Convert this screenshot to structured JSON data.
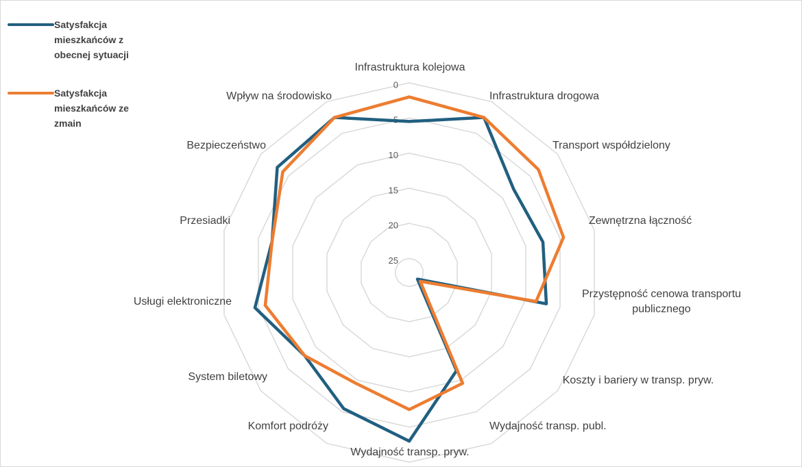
{
  "chart_data": {
    "type": "radar",
    "categories": [
      "Infrastruktura kolejowa",
      "Infrastruktura drogowa",
      "Transport współdzielony",
      "Zewnętrzna łączność",
      "Przystępność cenowa transportu publicznego",
      "Koszty i bariery w transp. pryw.",
      "Wydajność transp. publ.",
      "Wydajność transp. pryw.",
      "Komfort podróży",
      "System biletowy",
      "Usługi elektroniczne",
      "Przesiadki",
      "Bezpieczeństwo",
      "Wpływ na środowisko"
    ],
    "series": [
      {
        "name": "Satysfakcja mieszkańców z obecnej sytuacji",
        "color": "#215f80",
        "values": [
          5.5,
          2.5,
          8,
          7.5,
          7,
          25.5,
          11.5,
          3,
          5.5,
          8,
          4.5,
          7,
          3,
          2.5
        ]
      },
      {
        "name": "Satysfakcja mieszkańców ze zmain",
        "color": "#ed7d31",
        "values": [
          2,
          2.5,
          3.5,
          4.5,
          8.5,
          25,
          9.5,
          7.5,
          9.5,
          8,
          6,
          7,
          4,
          2.5
        ]
      }
    ],
    "ylim": [
      0,
      27
    ],
    "reversed": true,
    "yticks": [
      0,
      5,
      10,
      15,
      20,
      25
    ],
    "grid": true,
    "legend": "top-left"
  }
}
